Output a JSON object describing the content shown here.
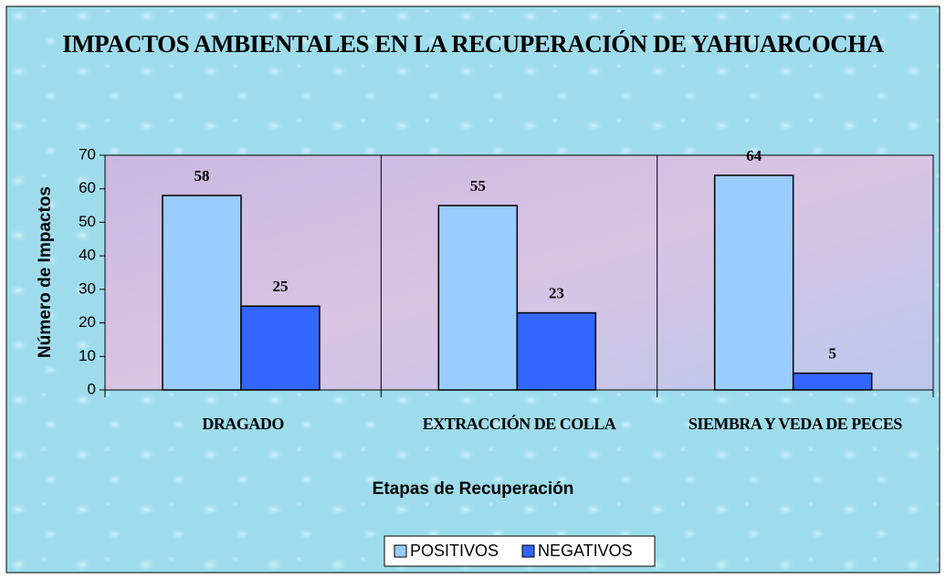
{
  "chart_data": {
    "type": "bar",
    "title": "IMPACTOS AMBIENTALES EN LA RECUPERACIÓN DE YAHUARCOCHA",
    "x_label": "Etapas de Recuperación",
    "y_label": "Número de Impactos",
    "categories": [
      "DRAGADO",
      "EXTRACCIÓN DE COLLA",
      "SIEMBRA Y VEDA DE PECES"
    ],
    "series": [
      {
        "name": "POSITIVOS",
        "color": "#99ccff",
        "values": [
          58,
          55,
          64
        ]
      },
      {
        "name": "NEGATIVOS",
        "color": "#3366ff",
        "values": [
          25,
          23,
          5
        ]
      }
    ],
    "ylim": [
      0,
      70
    ],
    "yticks": [
      0,
      10,
      20,
      30,
      40,
      50,
      60,
      70
    ],
    "grid": false,
    "legend": "bottom"
  }
}
